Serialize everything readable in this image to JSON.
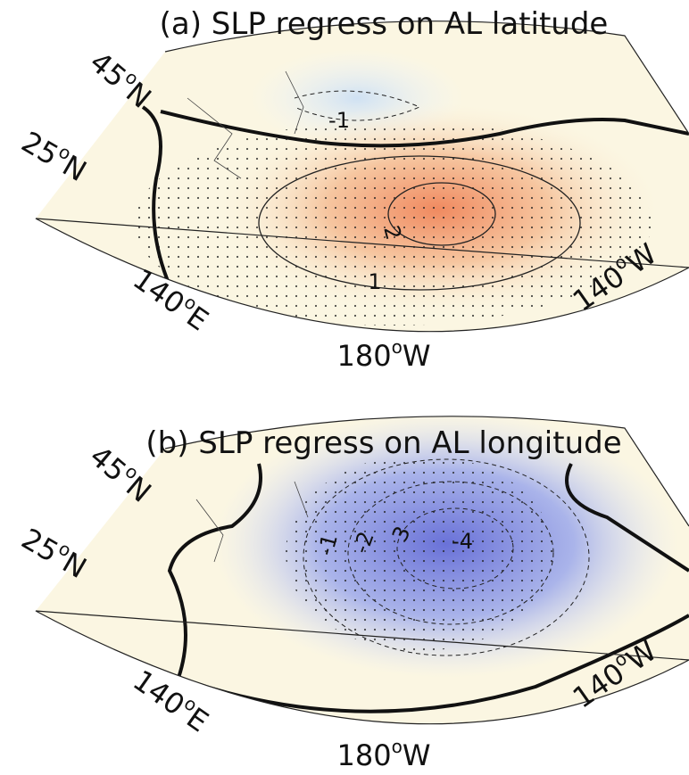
{
  "panels": [
    {
      "title": "(a) SLP regress on AL latitude",
      "latitude_labels": [
        {
          "number": "45",
          "degree": "o",
          "hemisphere": "N"
        },
        {
          "number": "25",
          "degree": "o",
          "hemisphere": "N"
        }
      ],
      "longitude_labels": [
        {
          "number": "140",
          "degree": "o",
          "hemisphere": "E"
        },
        {
          "number": "180",
          "degree": "o",
          "hemisphere": "W"
        },
        {
          "number": "140",
          "degree": "o",
          "hemisphere": "W"
        }
      ],
      "contour_labels": [
        "-1",
        "2",
        "1"
      ]
    },
    {
      "title": "(b) SLP regress on AL longitude",
      "latitude_labels": [
        {
          "number": "45",
          "degree": "o",
          "hemisphere": "N"
        },
        {
          "number": "25",
          "degree": "o",
          "hemisphere": "N"
        }
      ],
      "longitude_labels": [
        {
          "number": "140",
          "degree": "o",
          "hemisphere": "E"
        },
        {
          "number": "180",
          "degree": "o",
          "hemisphere": "W"
        },
        {
          "number": "140",
          "degree": "o",
          "hemisphere": "W"
        }
      ],
      "contour_labels": [
        "-1",
        "-2",
        "3",
        "-4"
      ]
    }
  ]
}
